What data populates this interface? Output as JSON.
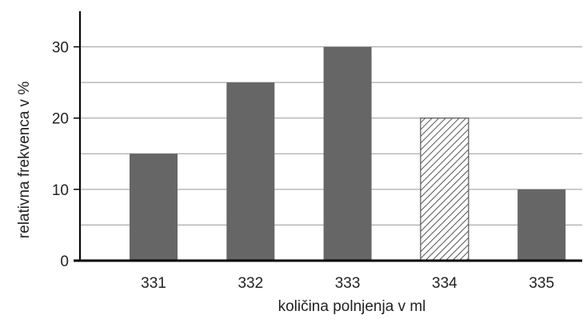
{
  "chart_data": {
    "type": "bar",
    "title": "",
    "xlabel": "količina polnjenja v ml",
    "ylabel": "relativna frekvenca v %",
    "categories": [
      "331",
      "332",
      "333",
      "334",
      "335"
    ],
    "values": [
      15,
      25,
      30,
      20,
      10
    ],
    "ylim": [
      0,
      35
    ],
    "yticks": [
      0,
      10,
      20,
      30
    ],
    "grid_values": [
      5,
      10,
      15,
      20,
      25,
      30
    ],
    "grid": true,
    "bar_styles": [
      "solid",
      "solid",
      "solid",
      "hatched",
      "solid"
    ],
    "colors": {
      "bar": "#666666",
      "hatch": "#555555",
      "axis": "#000000",
      "grid": "#999999"
    }
  }
}
